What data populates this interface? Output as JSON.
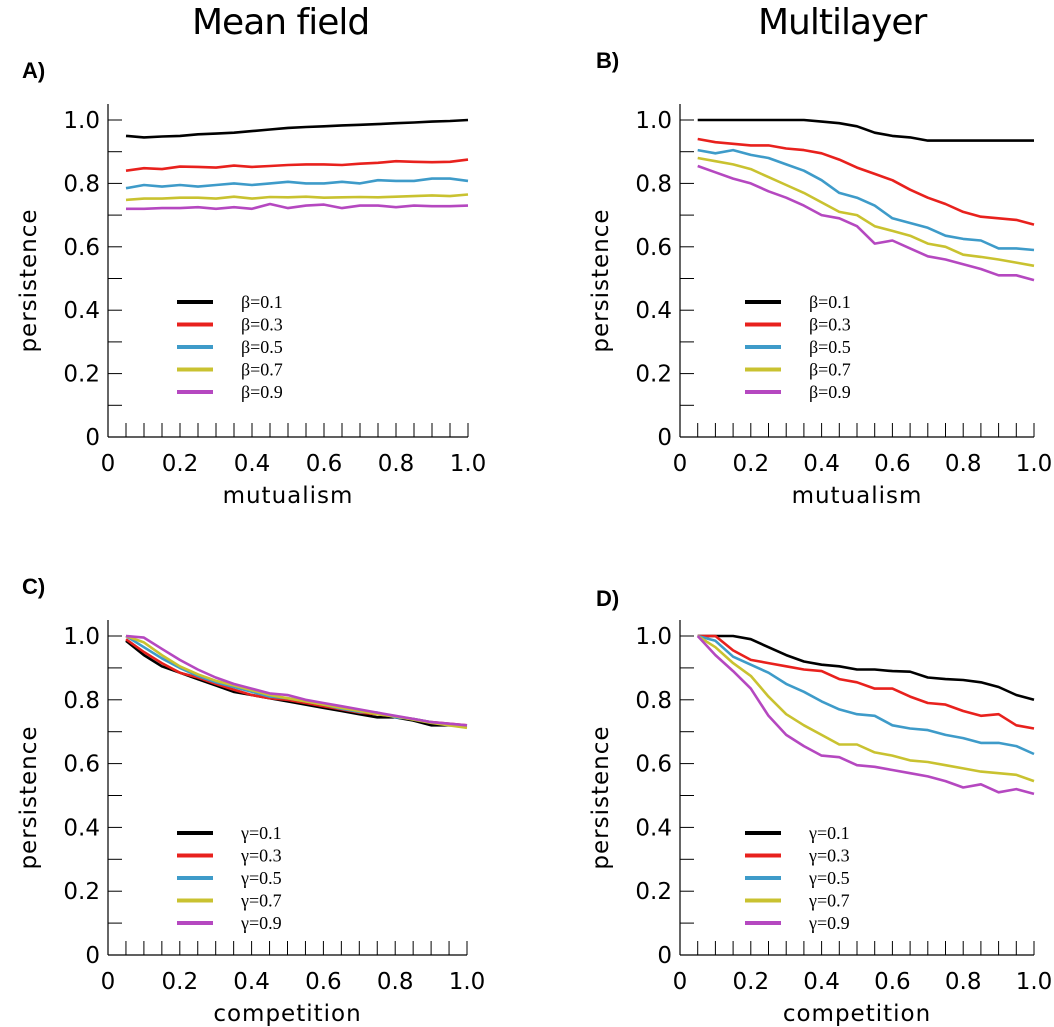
{
  "figure": {
    "column_titles": [
      "Mean field",
      "Multilayer"
    ]
  },
  "chart_data": [
    {
      "panel": "A)",
      "type": "line",
      "xlabel": "mutualism",
      "ylabel": "persistence",
      "xlim": [
        0,
        1.0
      ],
      "ylim": [
        0,
        1.05
      ],
      "xticks": [
        "0",
        "0.2",
        "0.4",
        "0.6",
        "0.8",
        "1.0"
      ],
      "yticks": [
        "0",
        "0.2",
        "0.4",
        "0.6",
        "0.8",
        "1.0"
      ],
      "legend_position": "center-left",
      "x": [
        0.05,
        0.1,
        0.15,
        0.2,
        0.25,
        0.3,
        0.35,
        0.4,
        0.45,
        0.5,
        0.55,
        0.6,
        0.65,
        0.7,
        0.75,
        0.8,
        0.85,
        0.9,
        0.95,
        1.0
      ],
      "series": [
        {
          "name": "β=0.1",
          "color": "#000000",
          "values": [
            0.95,
            0.945,
            0.948,
            0.95,
            0.955,
            0.957,
            0.96,
            0.965,
            0.97,
            0.975,
            0.978,
            0.98,
            0.983,
            0.985,
            0.987,
            0.99,
            0.992,
            0.995,
            0.997,
            1.0
          ]
        },
        {
          "name": "β=0.3",
          "color": "#e8211d",
          "values": [
            0.84,
            0.848,
            0.845,
            0.853,
            0.852,
            0.85,
            0.856,
            0.852,
            0.855,
            0.858,
            0.86,
            0.86,
            0.858,
            0.862,
            0.865,
            0.87,
            0.868,
            0.867,
            0.868,
            0.875
          ]
        },
        {
          "name": "β=0.5",
          "color": "#3e9bc9",
          "values": [
            0.785,
            0.795,
            0.79,
            0.795,
            0.79,
            0.795,
            0.8,
            0.795,
            0.8,
            0.805,
            0.8,
            0.8,
            0.805,
            0.8,
            0.81,
            0.808,
            0.808,
            0.815,
            0.815,
            0.808
          ]
        },
        {
          "name": "β=0.7",
          "color": "#c9c230",
          "values": [
            0.748,
            0.752,
            0.752,
            0.755,
            0.755,
            0.752,
            0.758,
            0.752,
            0.757,
            0.756,
            0.758,
            0.755,
            0.756,
            0.757,
            0.756,
            0.758,
            0.76,
            0.762,
            0.76,
            0.765
          ]
        },
        {
          "name": "β=0.9",
          "color": "#b548c0",
          "values": [
            0.72,
            0.72,
            0.722,
            0.722,
            0.725,
            0.72,
            0.725,
            0.72,
            0.735,
            0.722,
            0.73,
            0.733,
            0.722,
            0.73,
            0.73,
            0.725,
            0.73,
            0.728,
            0.728,
            0.73
          ]
        }
      ]
    },
    {
      "panel": "B)",
      "type": "line",
      "xlabel": "mutualism",
      "ylabel": "persistence",
      "xlim": [
        0,
        1.0
      ],
      "ylim": [
        0,
        1.05
      ],
      "xticks": [
        "0",
        "0.2",
        "0.4",
        "0.6",
        "0.8",
        "1.0"
      ],
      "yticks": [
        "0",
        "0.2",
        "0.4",
        "0.6",
        "0.8",
        "1.0"
      ],
      "legend_position": "center-left",
      "x": [
        0.05,
        0.1,
        0.15,
        0.2,
        0.25,
        0.3,
        0.35,
        0.4,
        0.45,
        0.5,
        0.55,
        0.6,
        0.65,
        0.7,
        0.75,
        0.8,
        0.85,
        0.9,
        0.95,
        1.0
      ],
      "series": [
        {
          "name": "β=0.1",
          "color": "#000000",
          "values": [
            1.0,
            1.0,
            1.0,
            1.0,
            1.0,
            1.0,
            1.0,
            0.995,
            0.99,
            0.98,
            0.96,
            0.95,
            0.945,
            0.935,
            0.935,
            0.935,
            0.935,
            0.935,
            0.935,
            0.935
          ]
        },
        {
          "name": "β=0.3",
          "color": "#e8211d",
          "values": [
            0.94,
            0.93,
            0.925,
            0.92,
            0.92,
            0.91,
            0.905,
            0.895,
            0.875,
            0.85,
            0.83,
            0.81,
            0.78,
            0.755,
            0.735,
            0.71,
            0.695,
            0.69,
            0.685,
            0.67
          ]
        },
        {
          "name": "β=0.5",
          "color": "#3e9bc9",
          "values": [
            0.905,
            0.895,
            0.905,
            0.89,
            0.88,
            0.86,
            0.84,
            0.81,
            0.77,
            0.755,
            0.73,
            0.69,
            0.675,
            0.66,
            0.635,
            0.625,
            0.62,
            0.595,
            0.595,
            0.59
          ]
        },
        {
          "name": "β=0.7",
          "color": "#c9c230",
          "values": [
            0.88,
            0.87,
            0.86,
            0.845,
            0.82,
            0.795,
            0.77,
            0.74,
            0.71,
            0.7,
            0.665,
            0.65,
            0.635,
            0.61,
            0.6,
            0.575,
            0.568,
            0.56,
            0.55,
            0.54
          ]
        },
        {
          "name": "β=0.9",
          "color": "#b548c0",
          "values": [
            0.855,
            0.835,
            0.815,
            0.8,
            0.775,
            0.755,
            0.73,
            0.7,
            0.69,
            0.665,
            0.61,
            0.62,
            0.595,
            0.57,
            0.56,
            0.545,
            0.53,
            0.51,
            0.51,
            0.495
          ]
        }
      ]
    },
    {
      "panel": "C)",
      "type": "line",
      "xlabel": "competition",
      "ylabel": "persistence",
      "xlim": [
        0,
        1.0
      ],
      "ylim": [
        0,
        1.05
      ],
      "xticks": [
        "0",
        "0.2",
        "0.4",
        "0.6",
        "0.8",
        "1.0"
      ],
      "yticks": [
        "0",
        "0.2",
        "0.4",
        "0.6",
        "0.8",
        "1.0"
      ],
      "legend_position": "center-left",
      "x": [
        0.05,
        0.1,
        0.15,
        0.2,
        0.25,
        0.3,
        0.35,
        0.4,
        0.45,
        0.5,
        0.55,
        0.6,
        0.65,
        0.7,
        0.75,
        0.8,
        0.85,
        0.9,
        0.95,
        1.0
      ],
      "series": [
        {
          "name": "γ=0.1",
          "color": "#000000",
          "values": [
            0.985,
            0.94,
            0.905,
            0.885,
            0.865,
            0.845,
            0.825,
            0.815,
            0.805,
            0.795,
            0.785,
            0.775,
            0.765,
            0.755,
            0.745,
            0.745,
            0.735,
            0.72,
            0.72,
            0.72
          ]
        },
        {
          "name": "γ=0.3",
          "color": "#e8211d",
          "values": [
            0.99,
            0.95,
            0.915,
            0.885,
            0.87,
            0.85,
            0.832,
            0.815,
            0.805,
            0.8,
            0.79,
            0.78,
            0.77,
            0.76,
            0.755,
            0.748,
            0.74,
            0.73,
            0.725,
            0.72
          ]
        },
        {
          "name": "γ=0.5",
          "color": "#3e9bc9",
          "values": [
            1.0,
            0.965,
            0.93,
            0.9,
            0.875,
            0.855,
            0.84,
            0.825,
            0.81,
            0.805,
            0.795,
            0.785,
            0.772,
            0.762,
            0.76,
            0.745,
            0.74,
            0.73,
            0.722,
            0.718
          ]
        },
        {
          "name": "γ=0.7",
          "color": "#c9c230",
          "values": [
            1.0,
            0.98,
            0.94,
            0.905,
            0.88,
            0.86,
            0.845,
            0.83,
            0.815,
            0.805,
            0.795,
            0.785,
            0.775,
            0.765,
            0.755,
            0.748,
            0.738,
            0.728,
            0.72,
            0.712
          ]
        },
        {
          "name": "γ=0.9",
          "color": "#b548c0",
          "values": [
            1.0,
            0.995,
            0.96,
            0.925,
            0.895,
            0.87,
            0.85,
            0.835,
            0.82,
            0.815,
            0.8,
            0.79,
            0.78,
            0.77,
            0.76,
            0.75,
            0.74,
            0.73,
            0.725,
            0.72
          ]
        }
      ]
    },
    {
      "panel": "D)",
      "type": "line",
      "xlabel": "competition",
      "ylabel": "persistence",
      "xlim": [
        0,
        1.0
      ],
      "ylim": [
        0,
        1.05
      ],
      "xticks": [
        "0",
        "0.2",
        "0.4",
        "0.6",
        "0.8",
        "1.0"
      ],
      "yticks": [
        "0",
        "0.2",
        "0.4",
        "0.6",
        "0.8",
        "1.0"
      ],
      "legend_position": "center-left",
      "x": [
        0.05,
        0.1,
        0.15,
        0.2,
        0.25,
        0.3,
        0.35,
        0.4,
        0.45,
        0.5,
        0.55,
        0.6,
        0.65,
        0.7,
        0.75,
        0.8,
        0.85,
        0.9,
        0.95,
        1.0
      ],
      "series": [
        {
          "name": "γ=0.1",
          "color": "#000000",
          "values": [
            1.0,
            1.0,
            1.0,
            0.99,
            0.965,
            0.94,
            0.92,
            0.91,
            0.905,
            0.895,
            0.895,
            0.89,
            0.888,
            0.87,
            0.865,
            0.862,
            0.855,
            0.84,
            0.815,
            0.8
          ]
        },
        {
          "name": "γ=0.3",
          "color": "#e8211d",
          "values": [
            1.0,
            1.0,
            0.955,
            0.925,
            0.915,
            0.905,
            0.895,
            0.89,
            0.865,
            0.855,
            0.835,
            0.835,
            0.81,
            0.79,
            0.785,
            0.765,
            0.75,
            0.755,
            0.72,
            0.71
          ]
        },
        {
          "name": "γ=0.5",
          "color": "#3e9bc9",
          "values": [
            1.0,
            0.985,
            0.935,
            0.91,
            0.885,
            0.85,
            0.825,
            0.795,
            0.77,
            0.755,
            0.75,
            0.72,
            0.71,
            0.705,
            0.69,
            0.68,
            0.665,
            0.665,
            0.655,
            0.63
          ]
        },
        {
          "name": "γ=0.7",
          "color": "#c9c230",
          "values": [
            1.0,
            0.965,
            0.915,
            0.875,
            0.81,
            0.755,
            0.72,
            0.69,
            0.66,
            0.66,
            0.635,
            0.625,
            0.61,
            0.605,
            0.595,
            0.585,
            0.575,
            0.57,
            0.565,
            0.545
          ]
        },
        {
          "name": "γ=0.9",
          "color": "#b548c0",
          "values": [
            1.0,
            0.94,
            0.89,
            0.835,
            0.75,
            0.69,
            0.655,
            0.625,
            0.62,
            0.595,
            0.59,
            0.58,
            0.57,
            0.56,
            0.545,
            0.525,
            0.535,
            0.51,
            0.52,
            0.505
          ]
        }
      ]
    }
  ]
}
